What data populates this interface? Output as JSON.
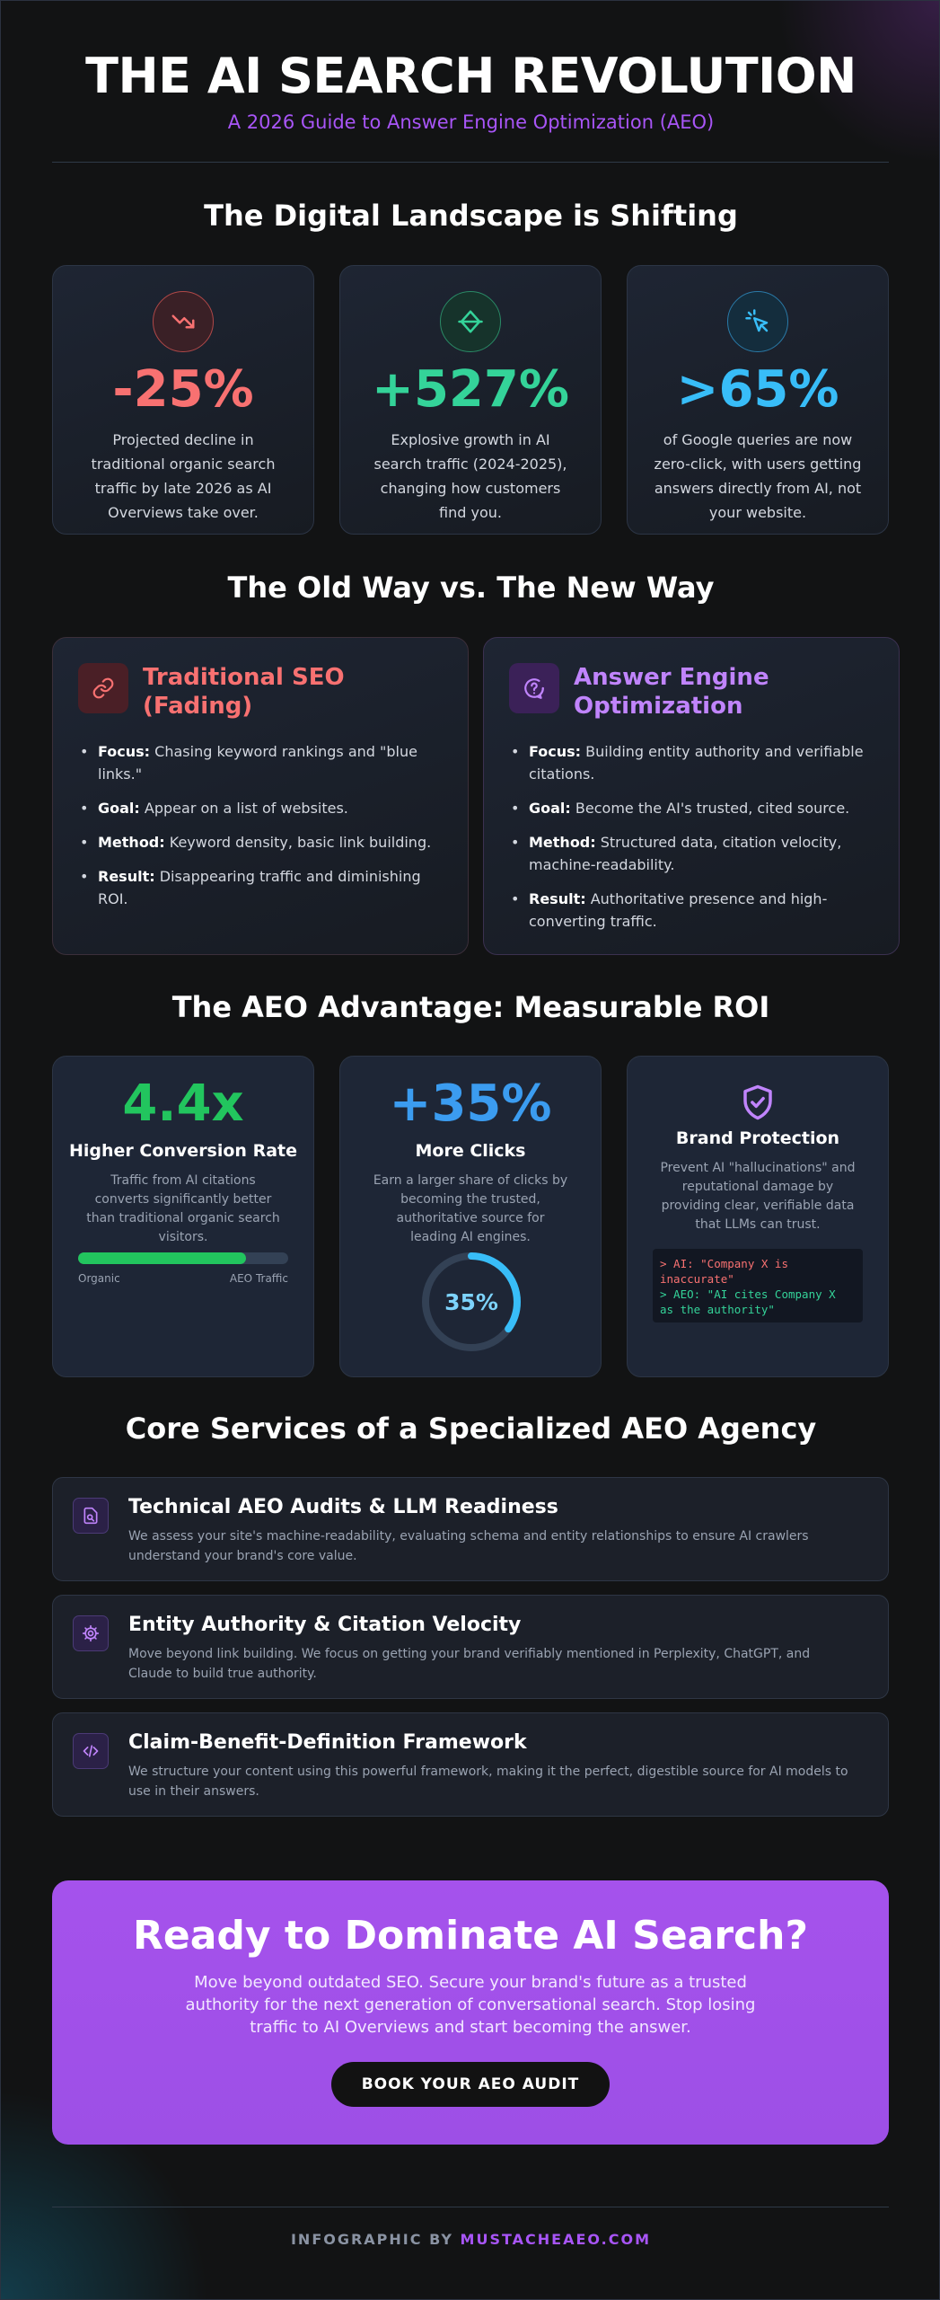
{
  "header": {
    "title": "THE AI SEARCH REVOLUTION",
    "subtitle": "A 2026 Guide to Answer Engine Optimization (AEO)"
  },
  "landscape": {
    "title": "The Digital Landscape is Shifting",
    "stats": [
      {
        "icon": "trending-down-icon",
        "value": "-25%",
        "color": "#f87171",
        "desc": "Projected decline in traditional organic search traffic by late 2026 as AI Overviews take over."
      },
      {
        "icon": "diamond-icon",
        "value": "+527%",
        "color": "#34d399",
        "desc": "Explosive growth in AI search traffic (2024-2025), changing how customers find you."
      },
      {
        "icon": "cursor-click-icon",
        "value": ">65%",
        "color": "#38bdf8",
        "desc": "of Google queries are now zero-click, with users getting answers directly from AI, not your website."
      }
    ]
  },
  "comparison": {
    "title": "The Old Way vs. The New Way",
    "old": {
      "title": "Traditional SEO (Fading)",
      "color": "#f87171",
      "items": [
        {
          "label": "Focus:",
          "text": "Chasing keyword rankings and \"blue links.\""
        },
        {
          "label": "Goal:",
          "text": "Appear on a list of websites."
        },
        {
          "label": "Method:",
          "text": "Keyword density, basic link building."
        },
        {
          "label": "Result:",
          "text": "Disappearing traffic and diminishing ROI."
        }
      ]
    },
    "new": {
      "title": "Answer Engine Optimization",
      "color": "#c084fc",
      "items": [
        {
          "label": "Focus:",
          "text": "Building entity authority and verifiable citations."
        },
        {
          "label": "Goal:",
          "text": "Become the AI's trusted, cited source."
        },
        {
          "label": "Method:",
          "text": "Structured data, citation velocity, machine-readability."
        },
        {
          "label": "Result:",
          "text": "Authoritative presence and high-converting traffic."
        }
      ]
    }
  },
  "roi": {
    "title": "The AEO Advantage: Measurable ROI",
    "conversion": {
      "value": "4.4x",
      "title": "Higher Conversion Rate",
      "desc": "Traffic from AI citations converts significantly better than traditional organic search visitors.",
      "bar_fraction": 0.8,
      "label_left": "Organic",
      "label_right": "AEO Traffic"
    },
    "clicks": {
      "value": "+35%",
      "title": "More Clicks",
      "desc": "Earn a larger share of clicks by becoming the trusted, authoritative source for leading AI engines.",
      "ring_label": "35%",
      "ring_fraction": 0.35
    },
    "brand": {
      "title": "Brand Protection",
      "desc": "Prevent AI \"hallucinations\" and reputational damage by providing clear, verifiable data that LLMs can trust.",
      "terminal_line1": "> AI: \"Company X is inaccurate\"",
      "terminal_line2": "> AEO: \"AI cites Company X as the authority\""
    }
  },
  "services": {
    "title": "Core Services of a Specialized AEO Agency",
    "items": [
      {
        "icon": "document-search-icon",
        "title": "Technical AEO Audits & LLM Readiness",
        "desc": "We assess your site's machine-readability, evaluating schema and entity relationships to ensure AI crawlers understand your brand's core value."
      },
      {
        "icon": "gear-icon",
        "title": "Entity Authority & Citation Velocity",
        "desc": "Move beyond link building. We focus on getting your brand verifiably mentioned in Perplexity, ChatGPT, and Claude to build true authority."
      },
      {
        "icon": "code-icon",
        "title": "Claim-Benefit-Definition Framework",
        "desc": "We structure your content using this powerful framework, making it the perfect, digestible source for AI models to use in their answers."
      }
    ]
  },
  "cta": {
    "title": "Ready to Dominate AI Search?",
    "desc": "Move beyond outdated SEO. Secure your brand's future as a trusted authority for the next generation of conversational search. Stop losing traffic to AI Overviews and start becoming the answer.",
    "button": "BOOK YOUR AEO AUDIT"
  },
  "footer": {
    "prefix": "INFOGRAPHIC BY",
    "brand": "MUSTACHEAEO.COM"
  }
}
